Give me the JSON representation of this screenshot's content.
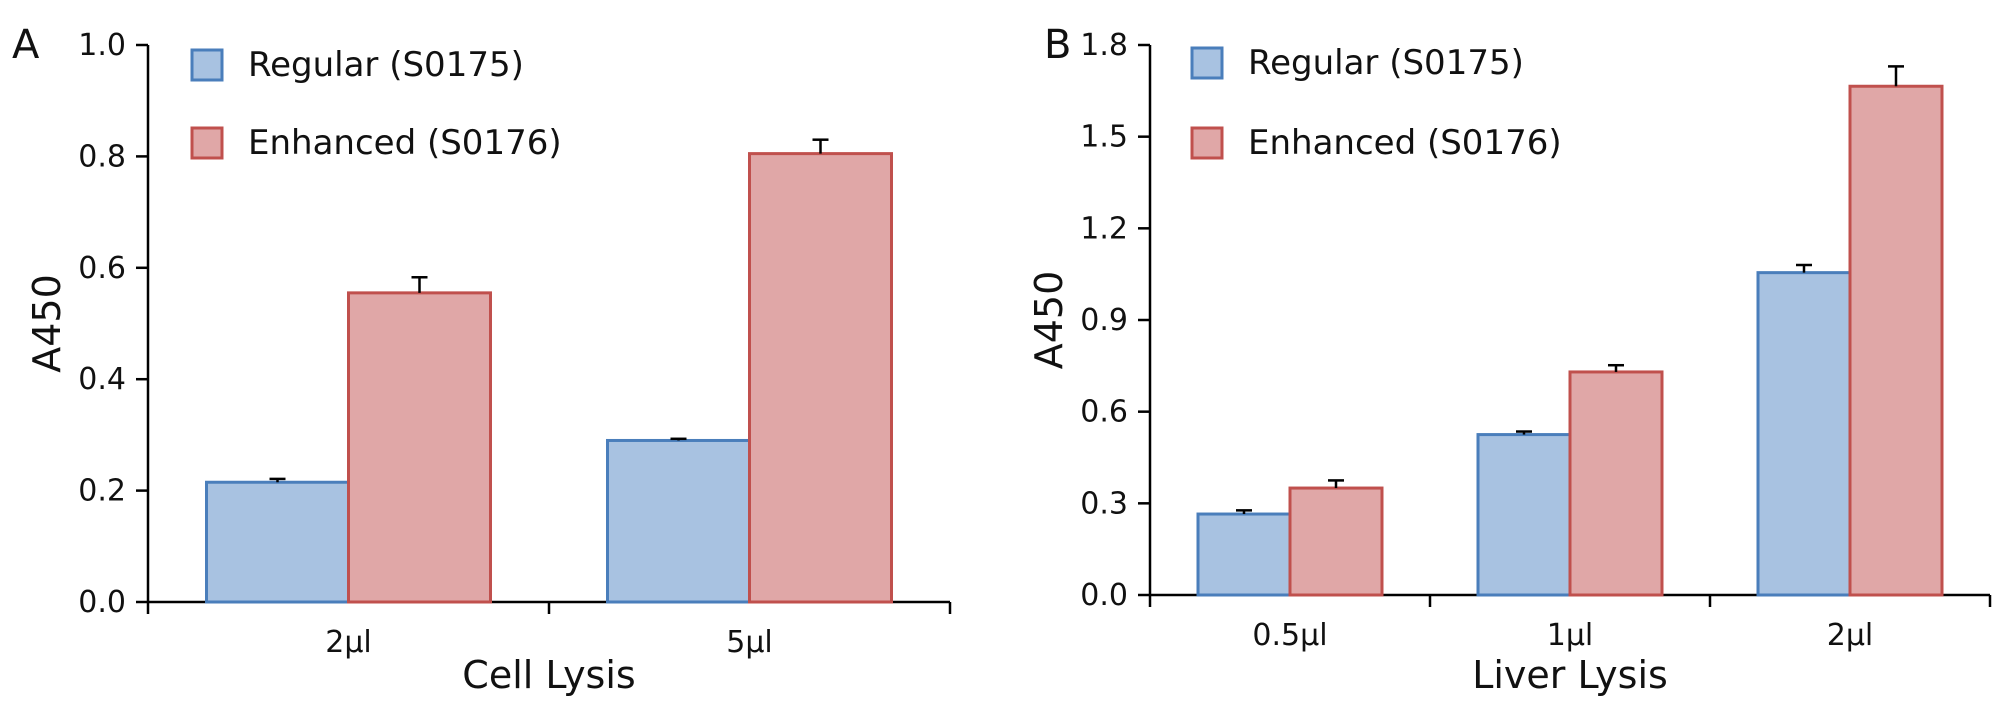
{
  "chart_data": [
    {
      "type": "bar",
      "panel_label": "A",
      "title": "",
      "xlabel": "Cell Lysis",
      "ylabel": "A450",
      "ylim": [
        0,
        1.0
      ],
      "yticks": [
        "0.0",
        "0.2",
        "0.4",
        "0.6",
        "0.8",
        "1.0"
      ],
      "categories": [
        "2µl",
        "5µl"
      ],
      "legend_position": "top-left",
      "series": [
        {
          "name": "Regular (S0175)",
          "color": "#a8c2e1",
          "edge": "#4a7ebb",
          "values": [
            0.215,
            0.29
          ],
          "errors": [
            0.006,
            0.003
          ]
        },
        {
          "name": "Enhanced (S0176)",
          "color": "#e0a7a7",
          "edge": "#c0504d",
          "values": [
            0.555,
            0.805
          ],
          "errors": [
            0.028,
            0.025
          ]
        }
      ]
    },
    {
      "type": "bar",
      "panel_label": "B",
      "title": "",
      "xlabel": "Liver Lysis",
      "ylabel": "A450",
      "ylim": [
        0,
        1.8
      ],
      "yticks": [
        "0.0",
        "0.3",
        "0.6",
        "0.9",
        "1.2",
        "1.5",
        "1.8"
      ],
      "categories": [
        "0.5µl",
        "1µl",
        "2µl"
      ],
      "legend_position": "top-left",
      "series": [
        {
          "name": "Regular (S0175)",
          "color": "#a8c2e1",
          "edge": "#4a7ebb",
          "values": [
            0.265,
            0.525,
            1.055
          ],
          "errors": [
            0.012,
            0.01,
            0.025
          ]
        },
        {
          "name": "Enhanced (S0176)",
          "color": "#e0a7a7",
          "edge": "#c0504d",
          "values": [
            0.35,
            0.73,
            1.665
          ],
          "errors": [
            0.025,
            0.022,
            0.065
          ]
        }
      ]
    }
  ]
}
